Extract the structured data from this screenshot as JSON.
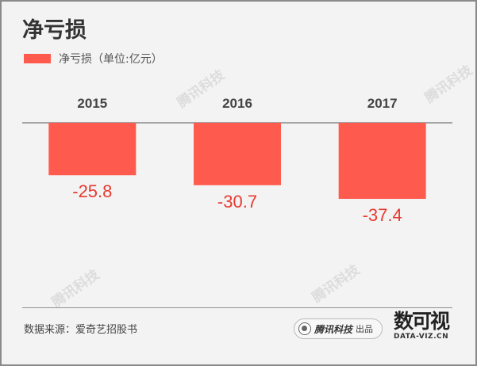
{
  "header": {
    "title": "净亏损",
    "legend_label": "净亏损（单位:亿元）"
  },
  "chart_data": {
    "type": "bar",
    "title": "净亏损",
    "categories": [
      "2015",
      "2016",
      "2017"
    ],
    "series": [
      {
        "name": "净亏损（单位:亿元）",
        "values": [
          -25.8,
          -30.7,
          -37.4
        ]
      }
    ],
    "value_labels": [
      "-25.8",
      "-30.7",
      "-37.4"
    ],
    "ylim": [
      -40,
      0
    ],
    "grid": false,
    "legend": "top-left",
    "color": "#ff5a4e",
    "label_color": "#e83a30"
  },
  "footer": {
    "source": "数据来源：爱奇艺招股书",
    "publisher_name": "腾讯科技",
    "publisher_suffix": "出品",
    "logo_mark": "数可视",
    "logo_domain": "DATA-VIZ.CN"
  },
  "watermark_text": "腾讯科技"
}
